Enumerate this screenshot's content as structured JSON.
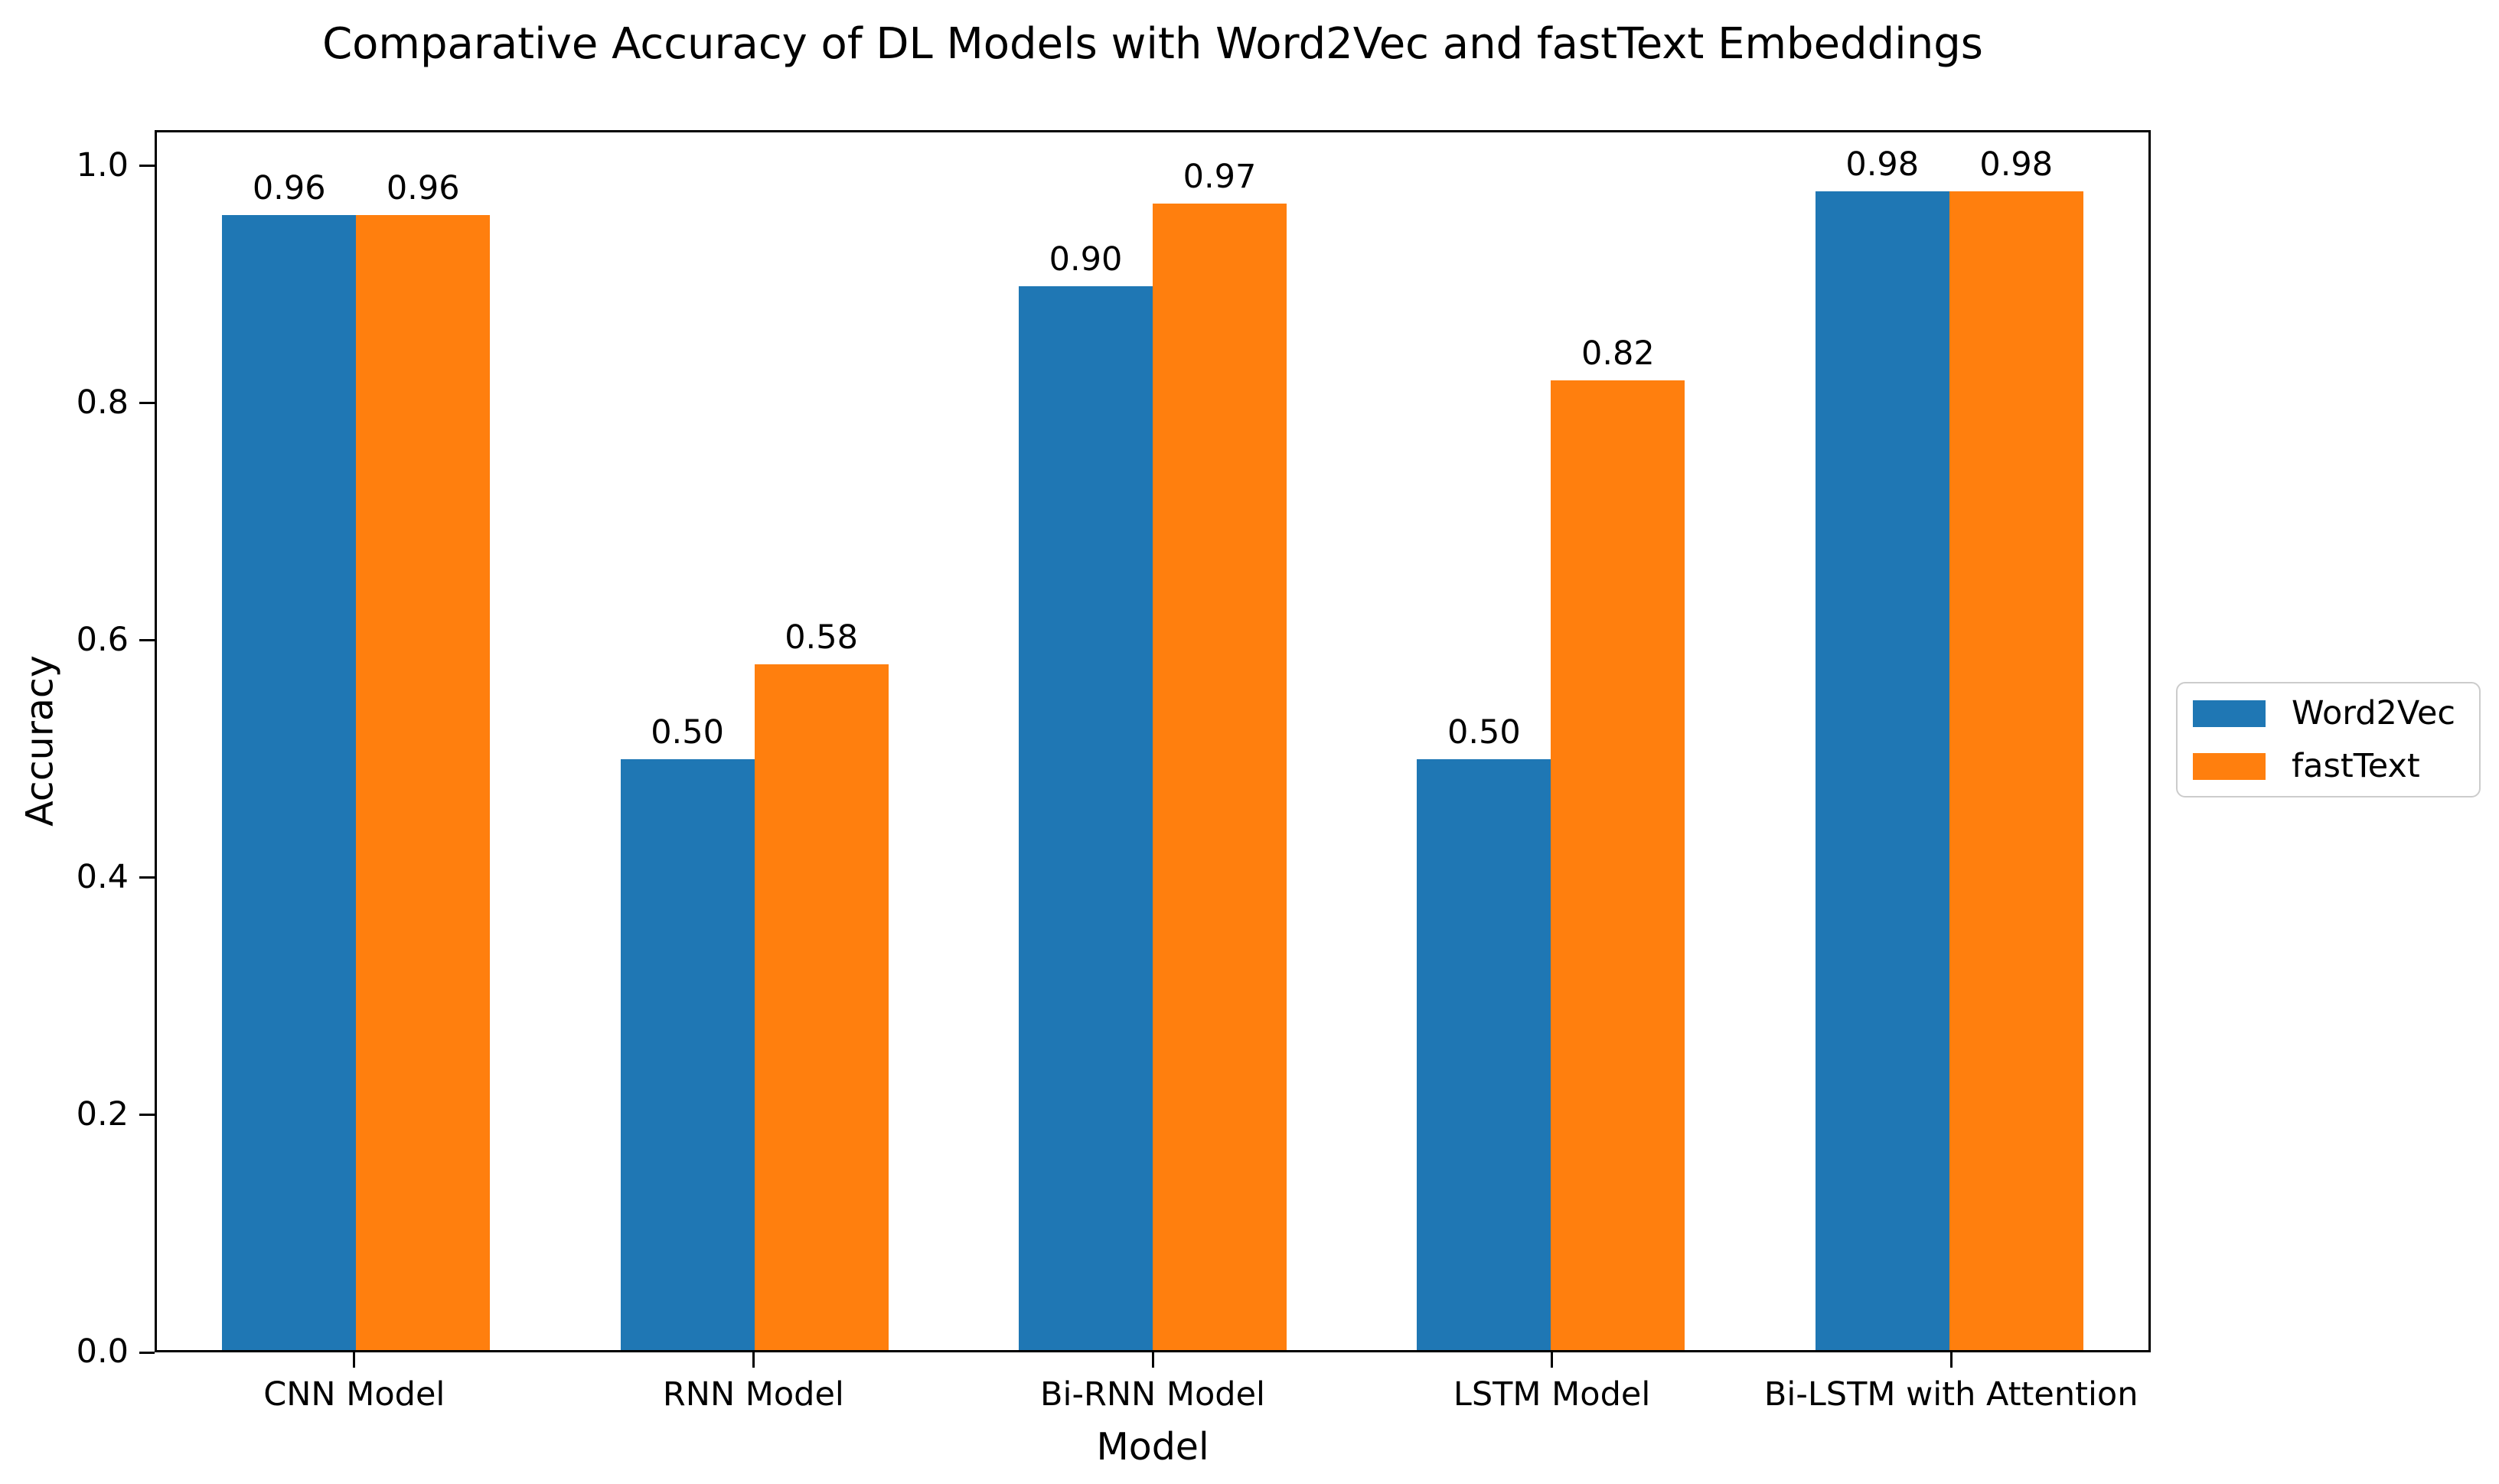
{
  "title": "Comparative Accuracy of DL Models with Word2Vec and fastText Embeddings",
  "chart_data": {
    "type": "bar",
    "title": "Comparative Accuracy of DL Models with Word2Vec and fastText Embeddings",
    "xlabel": "Model",
    "ylabel": "Accuracy",
    "categories": [
      "CNN Model",
      "RNN Model",
      "Bi-RNN Model",
      "LSTM Model",
      "Bi-LSTM with Attention"
    ],
    "series": [
      {
        "name": "Word2Vec",
        "color": "#1f77b4",
        "values": [
          0.96,
          0.5,
          0.9,
          0.5,
          0.98
        ],
        "labels": [
          "0.96",
          "0.50",
          "0.90",
          "0.50",
          "0.98"
        ]
      },
      {
        "name": "fastText",
        "color": "#ff7f0e",
        "values": [
          0.96,
          0.58,
          0.97,
          0.82,
          0.98
        ],
        "labels": [
          "0.96",
          "0.58",
          "0.97",
          "0.82",
          "0.98"
        ]
      }
    ],
    "yticks": [
      "0.0",
      "0.2",
      "0.4",
      "0.6",
      "0.8",
      "1.0"
    ],
    "ylim": [
      0,
      1.03
    ],
    "grid": false,
    "legend_position": "center-right outside axes",
    "bar_value_labels_shown": true
  },
  "colors": {
    "word2vec_blue": "#1f77b4",
    "fasttext_orange": "#ff7f0e",
    "axis": "#000000",
    "legend_border": "#cccccc",
    "background": "#ffffff"
  }
}
